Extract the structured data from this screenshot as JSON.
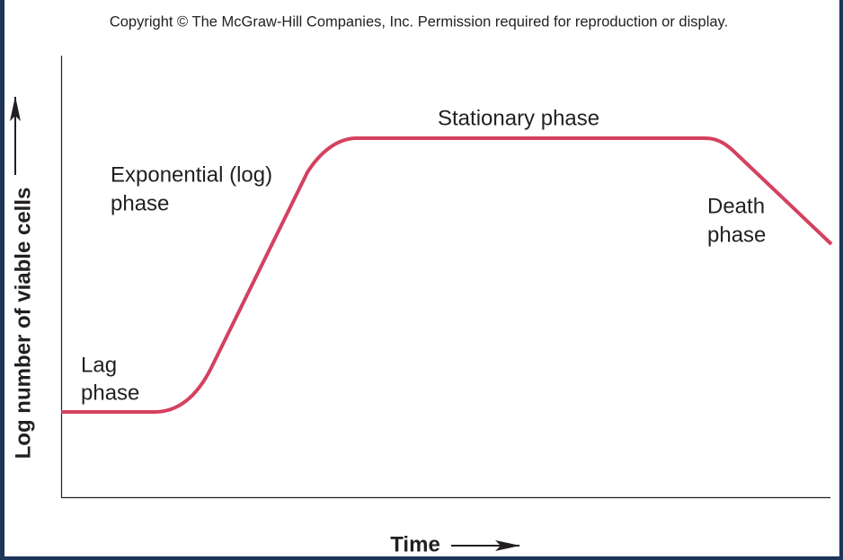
{
  "copyright": "Copyright © The McGraw-Hill Companies, Inc. Permission required for reproduction or display.",
  "axes": {
    "y_label": "Log number of viable cells",
    "x_label": "Time"
  },
  "phases": [
    {
      "lines": [
        "Lag",
        "phase"
      ]
    },
    {
      "lines": [
        "Exponential (log)",
        "phase"
      ]
    },
    {
      "lines": [
        "Stationary phase"
      ]
    },
    {
      "lines": [
        "Death",
        "phase"
      ]
    }
  ]
}
